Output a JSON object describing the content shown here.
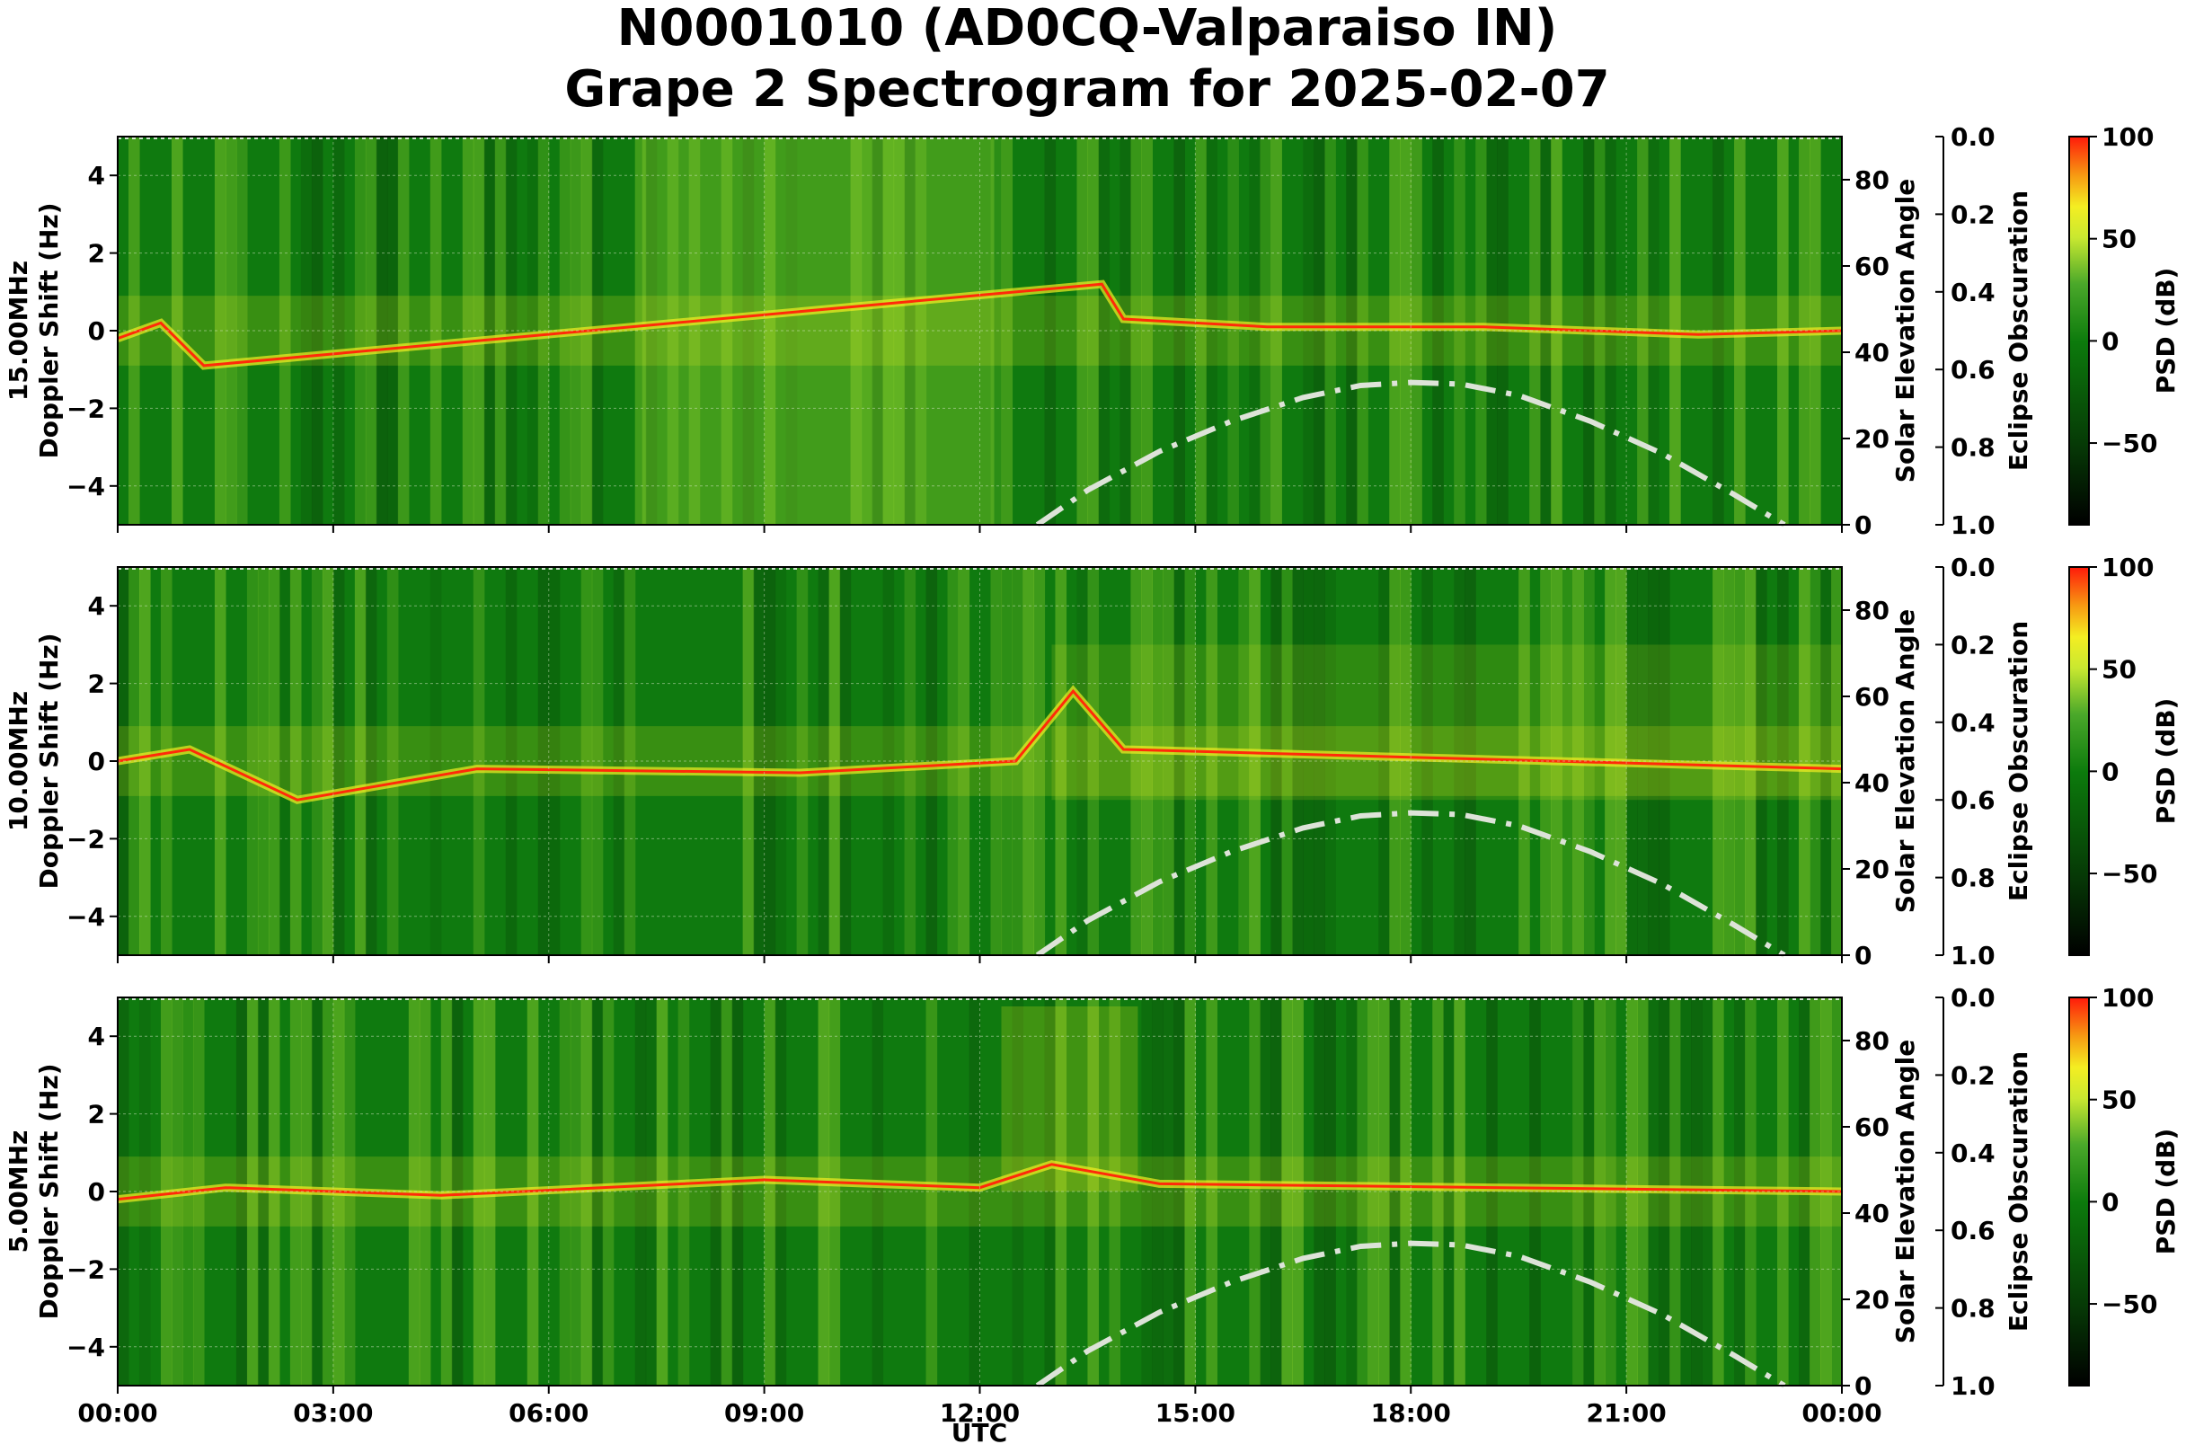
{
  "title_line1": "N0001010 (AD0CQ-Valparaiso IN)",
  "title_line2": "Grape 2 Spectrogram for 2025-02-07",
  "colors": {
    "spectro_low": "#0a4a0a",
    "spectro_mid": "#0f7a0f",
    "spectro_bright": "#7fc62a",
    "spectro_high": "#f2ee22",
    "trace": "#ff2a0a",
    "sun_curve": "#dde3d8"
  },
  "chart_data": {
    "type": "heatmap",
    "xlabel": "UTC",
    "x_ticks": [
      "00:00",
      "03:00",
      "06:00",
      "09:00",
      "12:00",
      "15:00",
      "18:00",
      "21:00",
      "00:00"
    ],
    "x_range_hours": [
      0,
      24
    ],
    "y_ticks": [
      4,
      2,
      0,
      -2,
      -4
    ],
    "ylim": [
      -5,
      5
    ],
    "right_axis": {
      "label": "Solar Elevation Angle",
      "ticks": [
        80,
        60,
        40,
        20,
        0
      ],
      "range": [
        0,
        90
      ]
    },
    "eclipse_axis": {
      "label": "Eclipse Obscuration",
      "ticks": [
        "0.0",
        "0.2",
        "0.4",
        "0.6",
        "0.8",
        "1.0"
      ]
    },
    "colorbar": {
      "label": "PSD (dB)",
      "ticks": [
        "100",
        "50",
        "0",
        "−50"
      ],
      "tick_values": [
        100,
        50,
        0,
        -50
      ],
      "range": [
        -90,
        100
      ]
    },
    "solar_elevation": [
      {
        "hour": 12.8,
        "deg": 0
      },
      {
        "hour": 13.5,
        "deg": 8
      },
      {
        "hour": 14.5,
        "deg": 17
      },
      {
        "hour": 15.5,
        "deg": 24
      },
      {
        "hour": 16.5,
        "deg": 29.5
      },
      {
        "hour": 17.3,
        "deg": 32.3
      },
      {
        "hour": 18.0,
        "deg": 33
      },
      {
        "hour": 18.7,
        "deg": 32.6
      },
      {
        "hour": 19.5,
        "deg": 30
      },
      {
        "hour": 20.5,
        "deg": 24
      },
      {
        "hour": 21.5,
        "deg": 16.5
      },
      {
        "hour": 22.5,
        "deg": 7
      },
      {
        "hour": 23.2,
        "deg": 0
      }
    ],
    "panels": [
      {
        "frequency": "15.00MHz",
        "ylabel": "Doppler Shift (Hz)",
        "trace": [
          {
            "hour": 0,
            "hz": -0.2
          },
          {
            "hour": 0.6,
            "hz": 0.2
          },
          {
            "hour": 1.2,
            "hz": -0.9
          },
          {
            "hour": 13.7,
            "hz": 1.2
          },
          {
            "hour": 14.0,
            "hz": 0.3
          },
          {
            "hour": 16.0,
            "hz": 0.1
          },
          {
            "hour": 19.0,
            "hz": 0.1
          },
          {
            "hour": 22.0,
            "hz": -0.1
          },
          {
            "hour": 24.0,
            "hz": 0
          }
        ]
      },
      {
        "frequency": "10.00MHz",
        "ylabel": "Doppler Shift (Hz)",
        "trace": [
          {
            "hour": 0,
            "hz": 0
          },
          {
            "hour": 1.0,
            "hz": 0.3
          },
          {
            "hour": 2.5,
            "hz": -1.0
          },
          {
            "hour": 5.0,
            "hz": -0.2
          },
          {
            "hour": 9.5,
            "hz": -0.3
          },
          {
            "hour": 12.5,
            "hz": 0
          },
          {
            "hour": 13.3,
            "hz": 1.8
          },
          {
            "hour": 14.0,
            "hz": 0.3
          },
          {
            "hour": 18.0,
            "hz": 0.1
          },
          {
            "hour": 24.0,
            "hz": -0.2
          }
        ]
      },
      {
        "frequency": "5.00MHz",
        "ylabel": "Doppler Shift (Hz)",
        "trace": [
          {
            "hour": 0,
            "hz": -0.2
          },
          {
            "hour": 1.5,
            "hz": 0.1
          },
          {
            "hour": 4.5,
            "hz": -0.1
          },
          {
            "hour": 9.0,
            "hz": 0.3
          },
          {
            "hour": 12.0,
            "hz": 0.1
          },
          {
            "hour": 13.0,
            "hz": 0.7
          },
          {
            "hour": 14.5,
            "hz": 0.2
          },
          {
            "hour": 24.0,
            "hz": 0
          }
        ]
      }
    ]
  }
}
